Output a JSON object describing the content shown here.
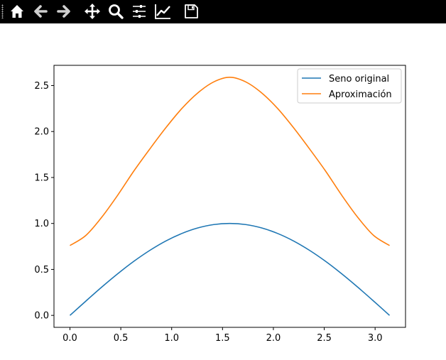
{
  "toolbar": {
    "background": "#000000",
    "buttons": [
      {
        "name": "home-icon",
        "tooltip": "Home"
      },
      {
        "name": "back-arrow-icon",
        "tooltip": "Back"
      },
      {
        "name": "forward-arrow-icon",
        "tooltip": "Forward"
      },
      {
        "name": "pan-icon",
        "tooltip": "Pan"
      },
      {
        "name": "zoom-icon",
        "tooltip": "Zoom"
      },
      {
        "name": "subplots-icon",
        "tooltip": "Subplots"
      },
      {
        "name": "edit-axis-icon",
        "tooltip": "Customize"
      },
      {
        "name": "save-icon",
        "tooltip": "Save"
      }
    ]
  },
  "chart_data": {
    "type": "line",
    "title": "",
    "xlabel": "",
    "ylabel": "",
    "xlim": [
      -0.157,
      3.299
    ],
    "ylim": [
      -0.13,
      2.72
    ],
    "xticks": [
      0.0,
      0.5,
      1.0,
      1.5,
      2.0,
      2.5,
      3.0
    ],
    "xtick_labels": [
      "0.0",
      "0.5",
      "1.0",
      "1.5",
      "2.0",
      "2.5",
      "3.0"
    ],
    "yticks": [
      0.0,
      0.5,
      1.0,
      1.5,
      2.0,
      2.5
    ],
    "ytick_labels": [
      "0.0",
      "0.5",
      "1.0",
      "1.5",
      "2.0",
      "2.5"
    ],
    "grid": false,
    "legend": "top-right",
    "x": [
      0.0,
      0.157,
      0.314,
      0.471,
      0.628,
      0.785,
      0.942,
      1.1,
      1.257,
      1.414,
      1.571,
      1.728,
      1.885,
      2.042,
      2.199,
      2.356,
      2.513,
      2.67,
      2.827,
      2.985,
      3.142
    ],
    "series": [
      {
        "name": "Seno original",
        "color": "#1f77b4",
        "values": [
          0.0,
          0.156,
          0.309,
          0.454,
          0.588,
          0.707,
          0.809,
          0.891,
          0.951,
          0.988,
          1.0,
          0.988,
          0.951,
          0.891,
          0.809,
          0.707,
          0.588,
          0.454,
          0.309,
          0.156,
          0.0
        ]
      },
      {
        "name": "Aproximación",
        "color": "#ff7f0e",
        "values": [
          0.76,
          0.87,
          1.07,
          1.31,
          1.57,
          1.81,
          2.04,
          2.25,
          2.42,
          2.54,
          2.59,
          2.54,
          2.42,
          2.25,
          2.04,
          1.81,
          1.57,
          1.31,
          1.07,
          0.87,
          0.76
        ]
      }
    ]
  }
}
